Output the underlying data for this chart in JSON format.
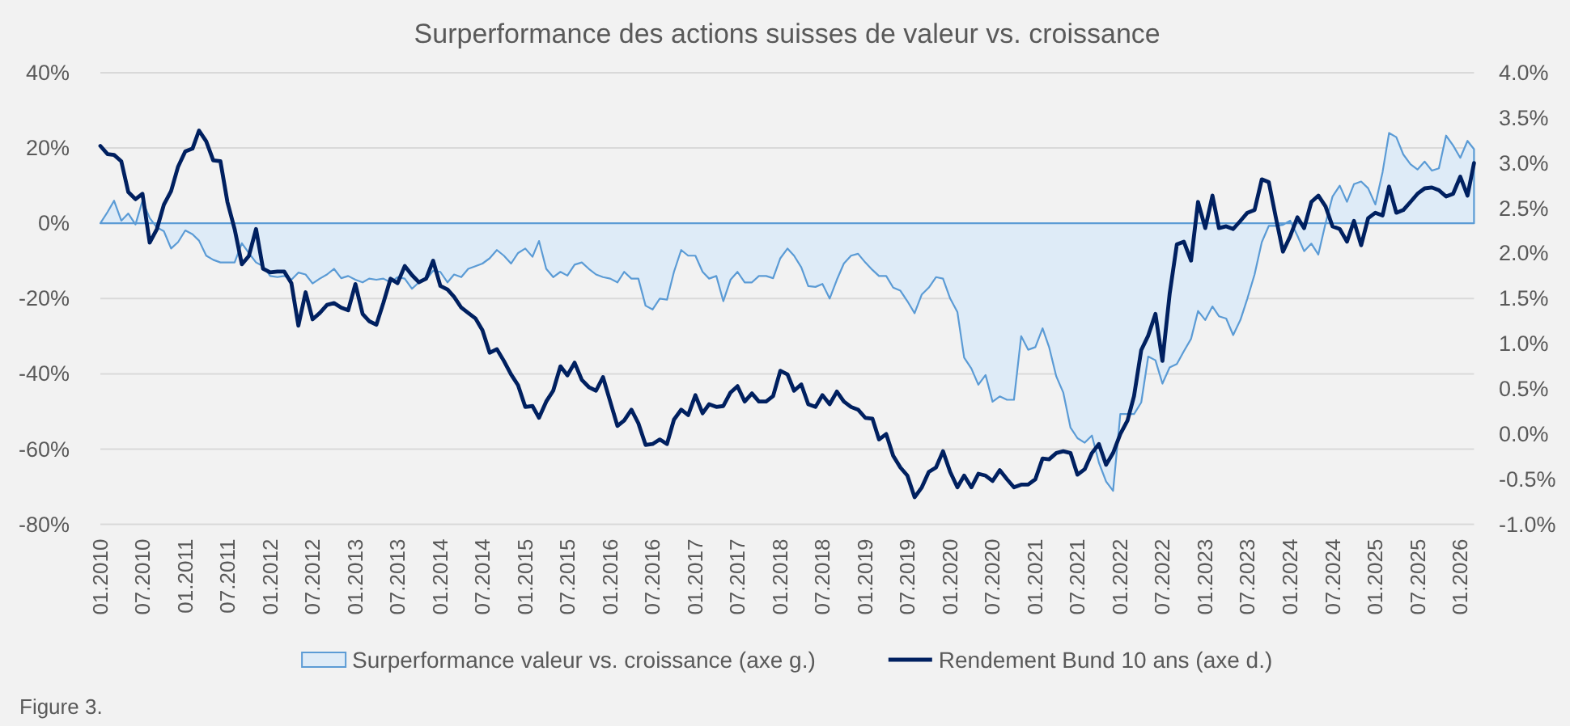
{
  "chart_data": {
    "type": "area",
    "title": "Surperformance des actions suisses de valeur vs. croissance",
    "x": [
      "2010-01",
      "2010-02",
      "2010-03",
      "2010-04",
      "2010-05",
      "2010-06",
      "2010-07",
      "2010-08",
      "2010-09",
      "2010-10",
      "2010-11",
      "2010-12",
      "2011-01",
      "2011-02",
      "2011-03",
      "2011-04",
      "2011-05",
      "2011-06",
      "2011-07",
      "2011-08",
      "2011-09",
      "2011-10",
      "2011-11",
      "2011-12",
      "2012-01",
      "2012-02",
      "2012-03",
      "2012-04",
      "2012-05",
      "2012-06",
      "2012-07",
      "2012-08",
      "2012-09",
      "2012-10",
      "2012-11",
      "2012-12",
      "2013-01",
      "2013-02",
      "2013-03",
      "2013-04",
      "2013-05",
      "2013-06",
      "2013-07",
      "2013-08",
      "2013-09",
      "2013-10",
      "2013-11",
      "2013-12",
      "2014-01",
      "2014-02",
      "2014-03",
      "2014-04",
      "2014-05",
      "2014-06",
      "2014-07",
      "2014-08",
      "2014-09",
      "2014-10",
      "2014-11",
      "2014-12",
      "2015-01",
      "2015-02",
      "2015-03",
      "2015-04",
      "2015-05",
      "2015-06",
      "2015-07",
      "2015-08",
      "2015-09",
      "2015-10",
      "2015-11",
      "2015-12",
      "2016-01",
      "2016-02",
      "2016-03",
      "2016-04",
      "2016-05",
      "2016-06",
      "2016-07",
      "2016-08",
      "2016-09",
      "2016-10",
      "2016-11",
      "2016-12",
      "2017-01",
      "2017-02",
      "2017-03",
      "2017-04",
      "2017-05",
      "2017-06",
      "2017-07",
      "2017-08",
      "2017-09",
      "2017-10",
      "2017-11",
      "2017-12",
      "2018-01",
      "2018-02",
      "2018-03",
      "2018-04",
      "2018-05",
      "2018-06",
      "2018-07",
      "2018-08",
      "2018-09",
      "2018-10",
      "2018-11",
      "2018-12",
      "2019-01",
      "2019-02",
      "2019-03",
      "2019-04",
      "2019-05",
      "2019-06",
      "2019-07",
      "2019-08",
      "2019-09",
      "2019-10",
      "2019-11",
      "2019-12",
      "2020-01",
      "2020-02",
      "2020-03",
      "2020-04",
      "2020-05",
      "2020-06",
      "2020-07",
      "2020-08",
      "2020-09",
      "2020-10",
      "2020-11",
      "2020-12",
      "2021-01",
      "2021-02",
      "2021-03",
      "2021-04",
      "2021-05",
      "2021-06",
      "2021-07",
      "2021-08",
      "2021-09",
      "2021-10",
      "2021-11",
      "2021-12",
      "2022-01",
      "2022-02",
      "2022-03",
      "2022-04",
      "2022-05",
      "2022-06",
      "2022-07",
      "2022-08",
      "2022-09",
      "2022-10",
      "2022-11",
      "2022-12",
      "2023-01",
      "2023-02",
      "2023-03",
      "2023-04",
      "2023-05",
      "2023-06",
      "2023-07",
      "2023-08",
      "2023-09",
      "2023-10",
      "2023-11",
      "2023-12",
      "2024-01",
      "2024-02",
      "2024-03",
      "2024-04",
      "2024-05",
      "2024-06",
      "2024-07",
      "2024-08",
      "2024-09",
      "2024-10",
      "2024-11",
      "2024-12",
      "2025-01",
      "2025-02",
      "2025-03",
      "2025-04",
      "2025-05",
      "2025-06",
      "2025-07",
      "2025-08",
      "2025-09",
      "2025-10",
      "2025-11",
      "2025-12",
      "2026-01",
      "2026-02",
      "2026-03"
    ],
    "xlim": [
      "2010-01",
      "2026-03"
    ],
    "xticks": [
      {
        "value": "2010-01",
        "label": "01.2010"
      },
      {
        "value": "2010-07",
        "label": "07.2010"
      },
      {
        "value": "2011-01",
        "label": "01.2011"
      },
      {
        "value": "2011-07",
        "label": "07.2011"
      },
      {
        "value": "2012-01",
        "label": "01.2012"
      },
      {
        "value": "2012-07",
        "label": "07.2012"
      },
      {
        "value": "2013-01",
        "label": "01.2013"
      },
      {
        "value": "2013-07",
        "label": "07.2013"
      },
      {
        "value": "2014-01",
        "label": "01.2014"
      },
      {
        "value": "2014-07",
        "label": "07.2014"
      },
      {
        "value": "2015-01",
        "label": "01.2015"
      },
      {
        "value": "2015-07",
        "label": "07.2015"
      },
      {
        "value": "2016-01",
        "label": "01.2016"
      },
      {
        "value": "2016-07",
        "label": "07.2016"
      },
      {
        "value": "2017-01",
        "label": "01.2017"
      },
      {
        "value": "2017-07",
        "label": "07.2017"
      },
      {
        "value": "2018-01",
        "label": "01.2018"
      },
      {
        "value": "2018-07",
        "label": "07.2018"
      },
      {
        "value": "2019-01",
        "label": "01.2019"
      },
      {
        "value": "2019-07",
        "label": "07.2019"
      },
      {
        "value": "2020-01",
        "label": "01.2020"
      },
      {
        "value": "2020-07",
        "label": "07.2020"
      },
      {
        "value": "2021-01",
        "label": "01.2021"
      },
      {
        "value": "2021-07",
        "label": "07.2021"
      },
      {
        "value": "2022-01",
        "label": "01.2022"
      },
      {
        "value": "2022-07",
        "label": "07.2022"
      },
      {
        "value": "2023-01",
        "label": "01.2023"
      },
      {
        "value": "2023-07",
        "label": "07.2023"
      },
      {
        "value": "2024-01",
        "label": "01.2024"
      },
      {
        "value": "2024-07",
        "label": "07.2024"
      },
      {
        "value": "2025-01",
        "label": "01.2025"
      },
      {
        "value": "2025-07",
        "label": "07.2025"
      },
      {
        "value": "2026-01",
        "label": "01.2026"
      }
    ],
    "ylim": [
      -80,
      40
    ],
    "yticks": [
      {
        "value": -80,
        "label": "-80%"
      },
      {
        "value": -60,
        "label": "-60%"
      },
      {
        "value": -40,
        "label": "-40%"
      },
      {
        "value": -20,
        "label": "-20%"
      },
      {
        "value": 0,
        "label": "0%"
      },
      {
        "value": 20,
        "label": "20%"
      },
      {
        "value": 40,
        "label": "40%"
      }
    ],
    "y2lim": [
      -1,
      4
    ],
    "y2ticks": [
      {
        "value": -1,
        "label": "-1.0%"
      },
      {
        "value": -0.5,
        "label": "-0.5%"
      },
      {
        "value": 0,
        "label": "0.0%"
      },
      {
        "value": 0.5,
        "label": "0.5%"
      },
      {
        "value": 1,
        "label": "1.0%"
      },
      {
        "value": 1.5,
        "label": "1.5%"
      },
      {
        "value": 2,
        "label": "2.0%"
      },
      {
        "value": 2.5,
        "label": "2.5%"
      },
      {
        "value": 3,
        "label": "3.0%"
      },
      {
        "value": 3.5,
        "label": "3.5%"
      },
      {
        "value": 4,
        "label": "4.0%"
      }
    ],
    "grid": "y",
    "legend": "bottom",
    "series": [
      {
        "name": "Surperformance valeur vs. croissance (axe g.)",
        "color": "#5b9bd5",
        "values": [
          0,
          3.0,
          6.0,
          0.7,
          2.6,
          -0.3,
          6.0,
          1.4,
          -1.1,
          -2.1,
          -6.7,
          -5.0,
          -1.9,
          -2.9,
          -4.6,
          -8.6,
          -9.7,
          -10.4,
          -10.4,
          -10.4,
          -5.3,
          -7.9,
          -10.4,
          -11.4,
          -14.0,
          -14.3,
          -14.0,
          -15.0,
          -13.1,
          -13.6,
          -16.0,
          -14.7,
          -13.6,
          -12.1,
          -14.6,
          -14.0,
          -15.0,
          -15.7,
          -14.7,
          -15.0,
          -14.7,
          -15.7,
          -14.3,
          -14.7,
          -17.4,
          -15.7,
          -15.0,
          -12.6,
          -12.9,
          -15.7,
          -13.6,
          -14.3,
          -12.1,
          -11.4,
          -10.7,
          -9.3,
          -7.1,
          -8.6,
          -10.7,
          -7.9,
          -6.7,
          -8.9,
          -4.7,
          -12.1,
          -14.3,
          -12.9,
          -13.9,
          -11.0,
          -10.4,
          -12.1,
          -13.6,
          -14.3,
          -14.7,
          -15.7,
          -12.9,
          -14.7,
          -14.7,
          -21.9,
          -22.9,
          -20.0,
          -20.3,
          -12.9,
          -7.1,
          -8.6,
          -8.6,
          -12.9,
          -14.7,
          -14.0,
          -20.7,
          -15.0,
          -12.9,
          -15.7,
          -15.7,
          -14.0,
          -14.0,
          -14.6,
          -9.3,
          -6.7,
          -8.6,
          -11.7,
          -16.7,
          -16.9,
          -16.1,
          -20.0,
          -15.0,
          -10.7,
          -8.6,
          -8.1,
          -10.4,
          -12.4,
          -14.0,
          -14.0,
          -17.1,
          -17.9,
          -20.7,
          -23.9,
          -18.9,
          -17.1,
          -14.3,
          -14.7,
          -20.0,
          -23.6,
          -35.7,
          -38.6,
          -42.9,
          -40.3,
          -47.4,
          -46.0,
          -46.9,
          -46.9,
          -30.0,
          -33.6,
          -32.9,
          -27.9,
          -32.9,
          -40.7,
          -45.0,
          -54.3,
          -57.1,
          -58.3,
          -56.4,
          -63.6,
          -68.6,
          -71.1,
          -50.7,
          -50.7,
          -50.7,
          -47.6,
          -35.4,
          -36.4,
          -42.6,
          -38.3,
          -37.4,
          -34.0,
          -30.7,
          -23.3,
          -25.7,
          -22.1,
          -24.7,
          -25.3,
          -29.7,
          -25.7,
          -20.0,
          -13.6,
          -5.0,
          -0.7,
          -0.7,
          -0.4,
          0.7,
          -3.3,
          -7.4,
          -5.4,
          -8.3,
          0.0,
          7.1,
          10.0,
          5.7,
          10.4,
          11.1,
          9.3,
          5.0,
          13.6,
          24.0,
          22.9,
          18.3,
          15.7,
          14.3,
          16.4,
          14.0,
          14.6,
          23.3,
          20.7,
          17.4,
          21.9,
          19.7
        ]
      },
      {
        "name": "Rendement Bund 10 ans (axe d.)",
        "type": "line",
        "axis": "y2",
        "color": "#002060",
        "values": [
          3.19,
          3.1,
          3.09,
          3.02,
          2.68,
          2.6,
          2.66,
          2.12,
          2.27,
          2.54,
          2.69,
          2.96,
          3.13,
          3.16,
          3.36,
          3.24,
          3.03,
          3.02,
          2.57,
          2.27,
          1.88,
          1.97,
          2.27,
          1.83,
          1.79,
          1.8,
          1.8,
          1.67,
          1.2,
          1.57,
          1.27,
          1.34,
          1.43,
          1.45,
          1.4,
          1.37,
          1.66,
          1.33,
          1.25,
          1.21,
          1.45,
          1.72,
          1.67,
          1.86,
          1.76,
          1.68,
          1.72,
          1.92,
          1.64,
          1.6,
          1.52,
          1.4,
          1.34,
          1.28,
          1.15,
          0.9,
          0.94,
          0.81,
          0.66,
          0.54,
          0.3,
          0.31,
          0.18,
          0.36,
          0.48,
          0.75,
          0.65,
          0.79,
          0.6,
          0.52,
          0.48,
          0.63,
          0.36,
          0.09,
          0.15,
          0.27,
          0.12,
          -0.12,
          -0.11,
          -0.06,
          -0.11,
          0.16,
          0.27,
          0.21,
          0.43,
          0.23,
          0.33,
          0.3,
          0.31,
          0.46,
          0.53,
          0.36,
          0.45,
          0.36,
          0.36,
          0.42,
          0.7,
          0.66,
          0.48,
          0.55,
          0.33,
          0.3,
          0.43,
          0.33,
          0.47,
          0.36,
          0.3,
          0.27,
          0.18,
          0.17,
          -0.06,
          0.0,
          -0.24,
          -0.37,
          -0.46,
          -0.7,
          -0.59,
          -0.42,
          -0.37,
          -0.19,
          -0.42,
          -0.59,
          -0.46,
          -0.59,
          -0.44,
          -0.46,
          -0.52,
          -0.4,
          -0.5,
          -0.59,
          -0.56,
          -0.56,
          -0.5,
          -0.27,
          -0.28,
          -0.21,
          -0.19,
          -0.21,
          -0.45,
          -0.39,
          -0.21,
          -0.11,
          -0.34,
          -0.21,
          0.0,
          0.15,
          0.42,
          0.93,
          1.09,
          1.33,
          0.81,
          1.55,
          2.1,
          2.13,
          1.92,
          2.57,
          2.28,
          2.64,
          2.28,
          2.3,
          2.27,
          2.36,
          2.45,
          2.48,
          2.82,
          2.79,
          2.39,
          2.02,
          2.19,
          2.4,
          2.28,
          2.57,
          2.64,
          2.52,
          2.3,
          2.27,
          2.13,
          2.36,
          2.09,
          2.39,
          2.45,
          2.42,
          2.74,
          2.45,
          2.48,
          2.57,
          2.66,
          2.72,
          2.73,
          2.7,
          2.63,
          2.66,
          2.85,
          2.64,
          3.0
        ]
      }
    ],
    "annotations": [
      "Figure 3."
    ]
  }
}
